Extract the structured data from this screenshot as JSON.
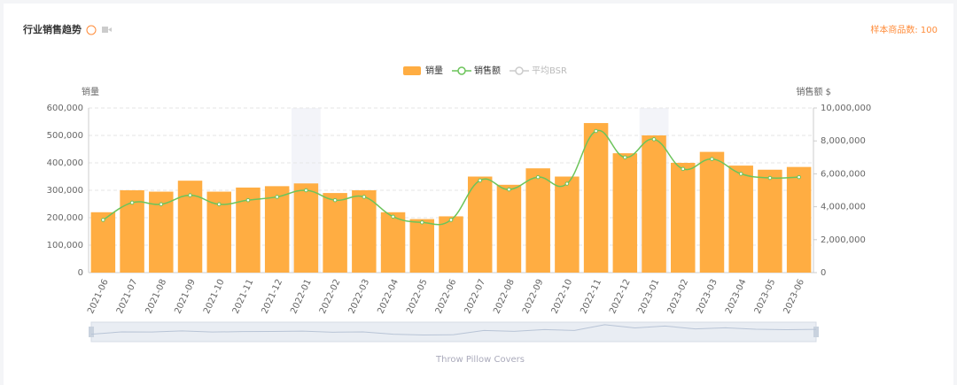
{
  "header": {
    "title": "行业销售趋势",
    "sample": "样本商品数: 100"
  },
  "chart_data": {
    "type": "bar-line",
    "categories": [
      "2021-06",
      "2021-07",
      "2021-08",
      "2021-09",
      "2021-10",
      "2021-11",
      "2021-12",
      "2022-01",
      "2022-02",
      "2022-03",
      "2022-04",
      "2022-05",
      "2022-06",
      "2022-07",
      "2022-08",
      "2022-09",
      "2022-10",
      "2022-11",
      "2022-12",
      "2023-01",
      "2023-02",
      "2023-03",
      "2023-04",
      "2023-05",
      "2023-06"
    ],
    "series": [
      {
        "name": "销量",
        "type": "bar",
        "color": "#ffad42",
        "values": [
          220000,
          300000,
          295000,
          335000,
          295000,
          310000,
          315000,
          325000,
          290000,
          300000,
          220000,
          195000,
          205000,
          350000,
          320000,
          380000,
          350000,
          545000,
          435000,
          500000,
          400000,
          440000,
          390000,
          375000,
          385000
        ]
      },
      {
        "name": "销售额",
        "type": "line",
        "axis": "y2",
        "color": "#6cc45a",
        "values": [
          3200000,
          4250000,
          4150000,
          4700000,
          4150000,
          4400000,
          4600000,
          5000000,
          4400000,
          4600000,
          3400000,
          3050000,
          3200000,
          5600000,
          5050000,
          5800000,
          5400000,
          8600000,
          7000000,
          8100000,
          6300000,
          6900000,
          6000000,
          5750000,
          5800000
        ]
      },
      {
        "name": "平均BSR",
        "type": "line",
        "color": "#cccccc",
        "values": [
          null,
          null,
          null,
          null,
          null,
          null,
          null,
          null,
          null,
          null,
          null,
          null,
          null,
          null,
          null,
          null,
          null,
          null,
          null,
          null,
          null,
          null,
          null,
          null,
          null
        ]
      }
    ],
    "ylabel": "销量",
    "y2label": "销售额 $",
    "ylim": [
      0,
      600000
    ],
    "yticks": [
      0,
      {
        "value": 100000,
        "label": "100,000"
      },
      {
        "value": 200000,
        "label": "200,000"
      },
      {
        "value": 300000,
        "label": "300,000"
      },
      {
        "value": 400000,
        "label": "400,000"
      },
      {
        "value": 500000,
        "label": "500,000"
      },
      {
        "value": 600000,
        "label": "600,000"
      }
    ],
    "y2lim": [
      0,
      10000000
    ],
    "y2ticks": [
      0,
      {
        "value": 2000000,
        "label": "2,000,000"
      },
      {
        "value": 4000000,
        "label": "4,000,000"
      },
      {
        "value": 6000000,
        "label": "6,000,000"
      },
      {
        "value": 8000000,
        "label": "8,000,000"
      },
      {
        "value": 10000000,
        "label": "10,000,000"
      }
    ],
    "grid": true,
    "zoom_label": "Throw Pillow Covers"
  }
}
